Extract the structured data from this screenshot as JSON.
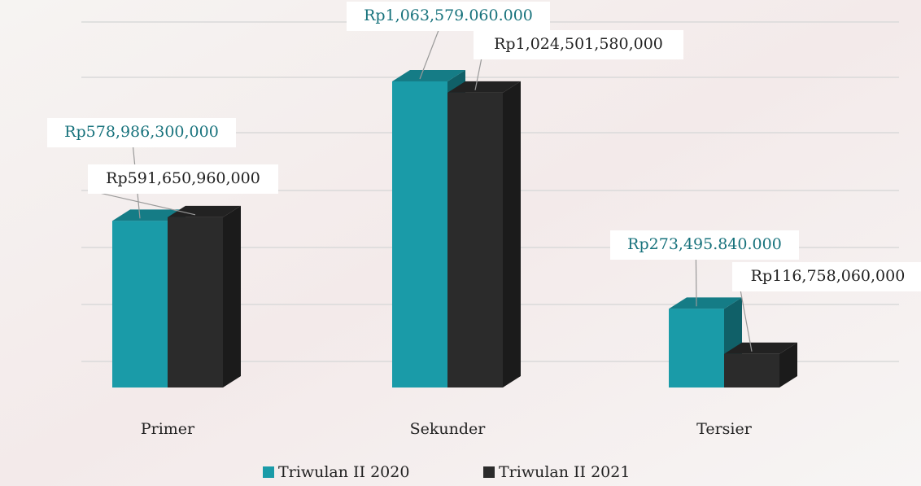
{
  "chart_data": {
    "type": "bar3d",
    "categories": [
      "Primer",
      "Sekunder",
      "Tersier"
    ],
    "series": [
      {
        "name": "Triwulan II 2020",
        "color": "#1a9ba8",
        "values": [
          578986300000,
          1063579060000,
          273495840000
        ],
        "value_labels": [
          "Rp578,986,300,000",
          "Rp1,063,579.060.000",
          "Rp273,495.840.000"
        ]
      },
      {
        "name": "Triwulan II 2021",
        "color": "#2b2b2b",
        "values": [
          591650960000,
          1024501580000,
          116758060000
        ],
        "value_labels": [
          "Rp591,650,960,000",
          "Rp1,024,501,580,000",
          "Rp116,758,060,000"
        ]
      }
    ],
    "legend": "bottom"
  }
}
